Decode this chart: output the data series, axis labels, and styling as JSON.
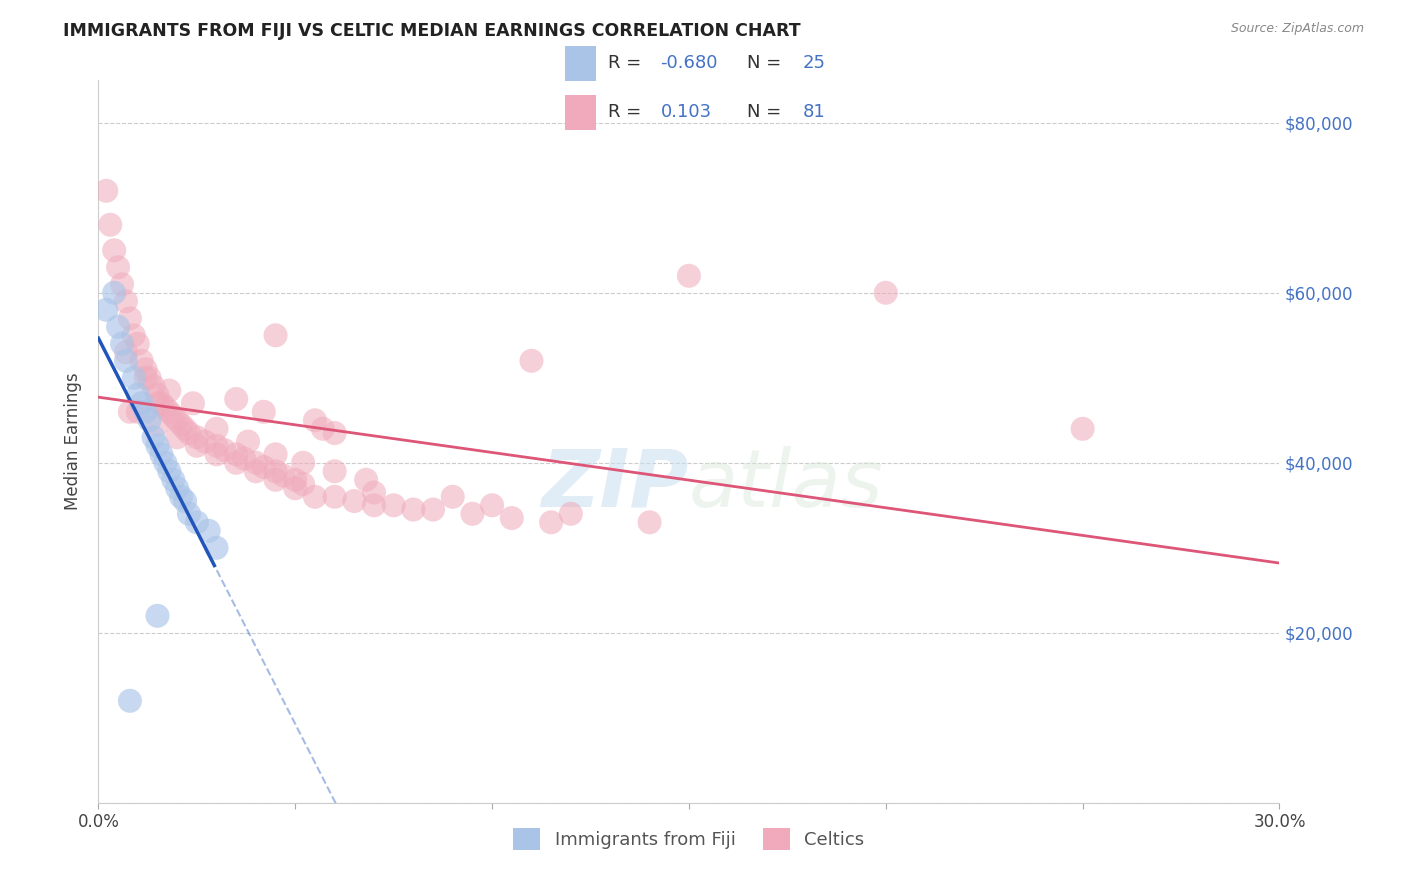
{
  "title": "IMMIGRANTS FROM FIJI VS CELTIC MEDIAN EARNINGS CORRELATION CHART",
  "source": "Source: ZipAtlas.com",
  "ylabel": "Median Earnings",
  "xlim": [
    0.0,
    0.3
  ],
  "ylim": [
    0,
    85000
  ],
  "xticks": [
    0.0,
    0.05,
    0.1,
    0.15,
    0.2,
    0.25,
    0.3
  ],
  "xticklabels": [
    "0.0%",
    "",
    "",
    "",
    "",
    "",
    "30.0%"
  ],
  "yticks": [
    0,
    20000,
    40000,
    60000,
    80000
  ],
  "yticklabels": [
    "",
    "$20,000",
    "$40,000",
    "$60,000",
    "$80,000"
  ],
  "fiji_R": -0.68,
  "fiji_N": 25,
  "celtic_R": 0.103,
  "celtic_N": 81,
  "fiji_color": "#aac4e8",
  "celtic_color": "#f0aabb",
  "fiji_line_color": "#2255bb",
  "celtic_line_color": "#dd5577",
  "watermark": "ZIPatlas",
  "fiji_points": [
    [
      0.002,
      58000
    ],
    [
      0.004,
      60000
    ],
    [
      0.005,
      56000
    ],
    [
      0.006,
      54000
    ],
    [
      0.007,
      52000
    ],
    [
      0.009,
      50000
    ],
    [
      0.01,
      48000
    ],
    [
      0.011,
      47000
    ],
    [
      0.012,
      46000
    ],
    [
      0.013,
      45000
    ],
    [
      0.014,
      43000
    ],
    [
      0.015,
      42000
    ],
    [
      0.016,
      41000
    ],
    [
      0.017,
      40000
    ],
    [
      0.018,
      39000
    ],
    [
      0.019,
      38000
    ],
    [
      0.02,
      37000
    ],
    [
      0.021,
      36000
    ],
    [
      0.022,
      35500
    ],
    [
      0.023,
      34000
    ],
    [
      0.025,
      33000
    ],
    [
      0.028,
      32000
    ],
    [
      0.03,
      30000
    ],
    [
      0.015,
      22000
    ],
    [
      0.008,
      12000
    ]
  ],
  "celtic_points": [
    [
      0.002,
      72000
    ],
    [
      0.003,
      68000
    ],
    [
      0.004,
      65000
    ],
    [
      0.005,
      63000
    ],
    [
      0.006,
      61000
    ],
    [
      0.007,
      59000
    ],
    [
      0.008,
      57000
    ],
    [
      0.009,
      55000
    ],
    [
      0.01,
      54000
    ],
    [
      0.011,
      52000
    ],
    [
      0.012,
      51000
    ],
    [
      0.013,
      50000
    ],
    [
      0.014,
      49000
    ],
    [
      0.015,
      48000
    ],
    [
      0.016,
      47000
    ],
    [
      0.017,
      46500
    ],
    [
      0.018,
      46000
    ],
    [
      0.019,
      45500
    ],
    [
      0.02,
      45000
    ],
    [
      0.021,
      44500
    ],
    [
      0.022,
      44000
    ],
    [
      0.023,
      43500
    ],
    [
      0.025,
      43000
    ],
    [
      0.027,
      42500
    ],
    [
      0.03,
      42000
    ],
    [
      0.032,
      41500
    ],
    [
      0.035,
      41000
    ],
    [
      0.037,
      40500
    ],
    [
      0.04,
      40000
    ],
    [
      0.042,
      39500
    ],
    [
      0.045,
      39000
    ],
    [
      0.047,
      38500
    ],
    [
      0.05,
      38000
    ],
    [
      0.052,
      37500
    ],
    [
      0.055,
      45000
    ],
    [
      0.057,
      44000
    ],
    [
      0.06,
      43500
    ],
    [
      0.007,
      53000
    ],
    [
      0.012,
      50000
    ],
    [
      0.018,
      48500
    ],
    [
      0.024,
      47000
    ],
    [
      0.03,
      44000
    ],
    [
      0.038,
      42500
    ],
    [
      0.045,
      41000
    ],
    [
      0.052,
      40000
    ],
    [
      0.06,
      39000
    ],
    [
      0.068,
      38000
    ],
    [
      0.01,
      46000
    ],
    [
      0.015,
      44500
    ],
    [
      0.02,
      43000
    ],
    [
      0.025,
      42000
    ],
    [
      0.03,
      41000
    ],
    [
      0.035,
      40000
    ],
    [
      0.04,
      39000
    ],
    [
      0.045,
      38000
    ],
    [
      0.05,
      37000
    ],
    [
      0.055,
      36000
    ],
    [
      0.065,
      35500
    ],
    [
      0.075,
      35000
    ],
    [
      0.085,
      34500
    ],
    [
      0.095,
      34000
    ],
    [
      0.105,
      33500
    ],
    [
      0.115,
      33000
    ],
    [
      0.008,
      46000
    ],
    [
      0.015,
      47000
    ],
    [
      0.11,
      52000
    ],
    [
      0.15,
      62000
    ],
    [
      0.2,
      60000
    ],
    [
      0.045,
      55000
    ],
    [
      0.25,
      44000
    ],
    [
      0.07,
      35000
    ],
    [
      0.08,
      34500
    ],
    [
      0.09,
      36000
    ],
    [
      0.1,
      35000
    ],
    [
      0.12,
      34000
    ],
    [
      0.14,
      33000
    ],
    [
      0.035,
      47500
    ],
    [
      0.042,
      46000
    ],
    [
      0.06,
      36000
    ],
    [
      0.07,
      36500
    ]
  ]
}
